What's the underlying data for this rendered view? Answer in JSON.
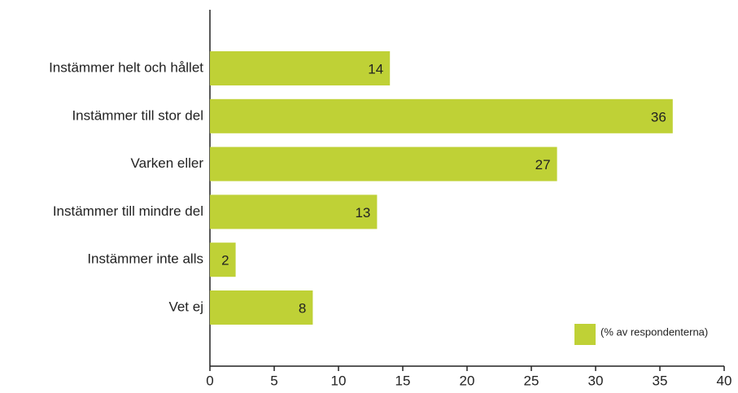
{
  "chart_data": {
    "type": "bar",
    "orientation": "horizontal",
    "categories": [
      "Instämmer helt och hållet",
      "Instämmer till stor del",
      "Varken eller",
      "Instämmer till mindre del",
      "Instämmer inte alls",
      "Vet ej"
    ],
    "series": [
      {
        "name": "(% av respondenterna)",
        "color": "#bfd136",
        "values": [
          14,
          36,
          27,
          13,
          2,
          8
        ]
      }
    ],
    "xlim": [
      0,
      40
    ],
    "xticks": [
      0,
      5,
      10,
      15,
      20,
      25,
      30,
      35,
      40
    ],
    "grid": false,
    "legend": "lower right"
  }
}
